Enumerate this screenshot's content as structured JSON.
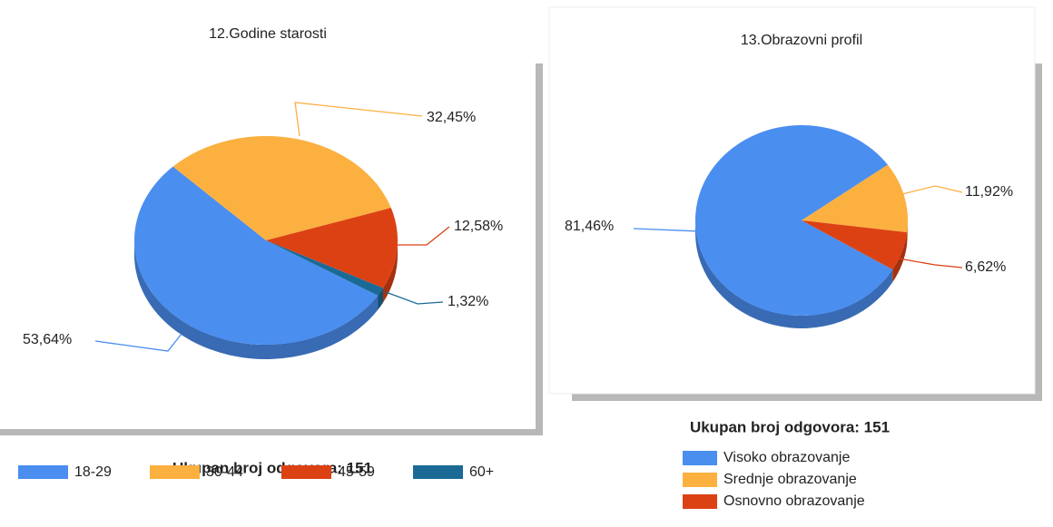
{
  "chart_data": [
    {
      "type": "pie",
      "title": "12.Godine starosti",
      "note": "Ukupan broj odgovora: 151",
      "categories": [
        "18-29",
        "30-44",
        "45-59",
        "60+"
      ],
      "values": [
        53.64,
        32.45,
        12.58,
        1.32
      ],
      "value_labels": [
        "53,64%",
        "32,45%",
        "12,58%",
        "1,32%"
      ],
      "colors": [
        "#4a8ef0",
        "#fbb040",
        "#dc4114",
        "#1b6a96"
      ]
    },
    {
      "type": "pie",
      "title": "13.Obrazovni profil",
      "note": "Ukupan broj odgovora: 151",
      "categories": [
        "Visoko obrazovanje",
        "Srednje obrazovanje",
        "Osnovno obrazovanje"
      ],
      "values": [
        81.46,
        11.92,
        6.62
      ],
      "value_labels": [
        "81,46%",
        "11,92%",
        "6,62%"
      ],
      "colors": [
        "#4a8ef0",
        "#fbb040",
        "#dc4114"
      ]
    }
  ]
}
